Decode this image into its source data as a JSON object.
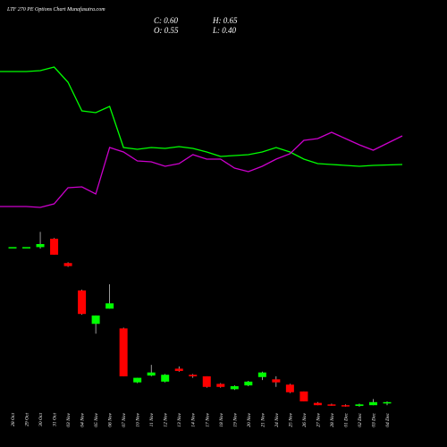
{
  "chart_data": {
    "type": "candlestick",
    "title": "LTF 270 PE Options Chart Munafasutra.com",
    "info": {
      "close": "C: 0.60",
      "high": "H: 0.65",
      "open": "O: 0.55",
      "low": "L: 0.40"
    },
    "categories": [
      "28 Oct",
      "29 Oct",
      "30 Oct",
      "31 Oct",
      "03 Nov",
      "04 Nov",
      "05 Nov",
      "06 Nov",
      "07 Nov",
      "10 Nov",
      "11 Nov",
      "12 Nov",
      "13 Nov",
      "14 Nov",
      "17 Nov",
      "18 Nov",
      "19 Nov",
      "20 Nov",
      "21 Nov",
      "24 Nov",
      "25 Nov",
      "26 Nov",
      "27 Nov",
      "28 Nov",
      "01 Dec",
      "02 Dec",
      "03 Dec",
      "04 Dec"
    ],
    "open": [
      10.8,
      10.8,
      10.8,
      11.35,
      9.75,
      7.95,
      5.75,
      6.75,
      5.45,
      1.9,
      2.35,
      1.95,
      2.8,
      2.4,
      2.3,
      1.8,
      1.45,
      1.7,
      2.25,
      2.1,
      1.75,
      1.3,
      0.55,
      0.45,
      0.4,
      0.35,
      0.4,
      0.55
    ],
    "high": [
      10.8,
      10.8,
      11.8,
      11.4,
      9.8,
      8.0,
      6.3,
      8.35,
      5.5,
      2.2,
      3.05,
      2.45,
      2.95,
      2.45,
      2.3,
      1.85,
      1.7,
      2.0,
      2.6,
      2.3,
      1.8,
      1.3,
      0.6,
      0.5,
      0.45,
      0.5,
      0.8,
      0.65
    ],
    "low": [
      10.8,
      10.8,
      10.7,
      10.3,
      9.5,
      6.35,
      5.1,
      6.75,
      2.3,
      1.85,
      2.3,
      1.9,
      2.6,
      2.2,
      1.55,
      1.55,
      1.4,
      1.65,
      2.05,
      1.6,
      1.2,
      0.65,
      0.4,
      0.35,
      0.3,
      0.3,
      0.4,
      0.4
    ],
    "close": [
      10.8,
      10.8,
      11.0,
      10.3,
      9.55,
      6.4,
      6.3,
      7.1,
      2.3,
      2.2,
      2.55,
      2.4,
      2.65,
      2.3,
      1.6,
      1.6,
      1.65,
      1.95,
      2.55,
      1.9,
      1.25,
      0.65,
      0.4,
      0.4,
      0.35,
      0.45,
      0.6,
      0.6
    ],
    "up_color": "#00ff00",
    "down_color": "#ff0000",
    "ylim": [
      0,
      12
    ],
    "overlay": {
      "ylim": [
        0,
        180
      ],
      "series": [
        {
          "color": "#00ff00",
          "values": [
            160,
            160,
            161,
            165,
            148,
            116,
            114,
            121,
            75,
            73,
            75,
            74,
            76,
            74,
            70,
            65,
            66,
            67,
            70,
            75,
            70,
            62,
            57,
            56,
            55,
            54,
            55,
            56
          ]
        },
        {
          "color": "#cc00cc",
          "values": [
            9,
            9,
            8,
            12,
            30,
            31,
            23,
            75,
            70,
            60,
            59,
            54,
            57,
            67,
            62,
            62,
            52,
            48,
            54,
            62,
            68,
            83,
            85,
            92,
            85,
            78,
            72,
            88
          ]
        }
      ]
    }
  }
}
